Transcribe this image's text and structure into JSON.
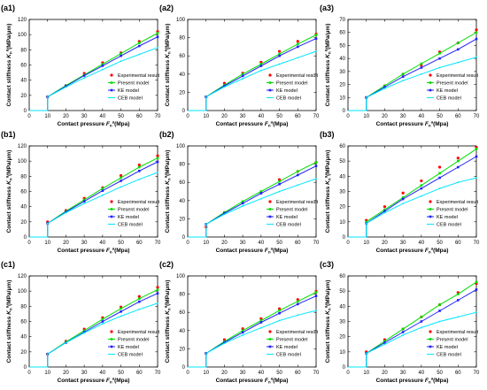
{
  "figure": {
    "xlabel_main": "Contact pressure ",
    "xlabel_var": "F",
    "xlabel_sub": "n",
    "xlabel_sup": "a",
    "xlabel_unit": "(Mpa)",
    "ylabel_main": "Contact stiffness ",
    "ylabel_var": "K",
    "ylabel_sub": "n",
    "ylabel_sup": "a",
    "ylabel_unit": "(MPa/μm)",
    "legend": [
      "Experimental result",
      "Present model",
      "KE model",
      "CEB model"
    ],
    "colors": {
      "experimental": "#ff0000",
      "present": "#00e000",
      "ke": "#2020ff",
      "ceb": "#00e5ff"
    }
  },
  "chart_data": [
    {
      "label": "(a1)",
      "type": "line",
      "x": [
        10,
        20,
        30,
        40,
        50,
        60,
        70
      ],
      "xlim": [
        0,
        70
      ],
      "ylim": [
        0,
        120
      ],
      "xticks": [
        0,
        10,
        20,
        30,
        40,
        50,
        60,
        70
      ],
      "yticks": [
        0,
        20,
        40,
        60,
        80,
        100,
        120
      ],
      "series": [
        {
          "name": "Experimental result",
          "kind": "points",
          "values": [
            18,
            33,
            49,
            63,
            76,
            91,
            104
          ]
        },
        {
          "name": "Present model",
          "kind": "line",
          "values": [
            18,
            33,
            47,
            61,
            75,
            89,
            102
          ]
        },
        {
          "name": "KE model",
          "kind": "line",
          "values": [
            18,
            32,
            46,
            59,
            72,
            85,
            97
          ]
        },
        {
          "name": "CEB model",
          "kind": "line",
          "values": [
            18,
            31,
            43,
            54,
            65,
            74,
            83
          ]
        }
      ],
      "legend_position": "bottom-right"
    },
    {
      "label": "(a2)",
      "type": "line",
      "x": [
        10,
        20,
        30,
        40,
        50,
        60,
        70
      ],
      "xlim": [
        0,
        70
      ],
      "ylim": [
        0,
        100
      ],
      "xticks": [
        0,
        10,
        20,
        30,
        40,
        50,
        60,
        70
      ],
      "yticks": [
        0,
        20,
        40,
        60,
        80,
        100
      ],
      "series": [
        {
          "name": "Experimental result",
          "kind": "points",
          "values": [
            15,
            30,
            41,
            53,
            65,
            76,
            84
          ]
        },
        {
          "name": "Present model",
          "kind": "line",
          "values": [
            15,
            28,
            40,
            51,
            62,
            73,
            83
          ]
        },
        {
          "name": "KE model",
          "kind": "line",
          "values": [
            15,
            27,
            38,
            49,
            60,
            70,
            79
          ]
        },
        {
          "name": "CEB model",
          "kind": "line",
          "values": [
            15,
            26,
            35,
            44,
            51,
            58,
            65
          ]
        }
      ],
      "legend_position": "bottom-right"
    },
    {
      "label": "(a3)",
      "type": "line",
      "x": [
        10,
        20,
        30,
        40,
        50,
        60,
        70
      ],
      "xlim": [
        0,
        70
      ],
      "ylim": [
        0,
        70
      ],
      "xticks": [
        0,
        10,
        20,
        30,
        40,
        50,
        60,
        70
      ],
      "yticks": [
        0,
        10,
        20,
        30,
        40,
        50,
        60,
        70
      ],
      "series": [
        {
          "name": "Experimental result",
          "kind": "points",
          "values": [
            10,
            19,
            28,
            35,
            45,
            52,
            62
          ]
        },
        {
          "name": "Present model",
          "kind": "line",
          "values": [
            10,
            19,
            28,
            36,
            44,
            52,
            60
          ]
        },
        {
          "name": "KE model",
          "kind": "line",
          "values": [
            10,
            18,
            26,
            33,
            40,
            47,
            55
          ]
        },
        {
          "name": "CEB model",
          "kind": "line",
          "values": [
            10,
            17,
            23,
            28,
            33,
            37,
            41
          ]
        }
      ],
      "legend_position": "bottom-right"
    },
    {
      "label": "(b1)",
      "type": "line",
      "x": [
        10,
        20,
        30,
        40,
        50,
        60,
        70
      ],
      "xlim": [
        0,
        70
      ],
      "ylim": [
        0,
        120
      ],
      "xticks": [
        0,
        10,
        20,
        30,
        40,
        50,
        60,
        70
      ],
      "yticks": [
        0,
        20,
        40,
        60,
        80,
        100,
        120
      ],
      "series": [
        {
          "name": "Experimental result",
          "kind": "points",
          "values": [
            20,
            35,
            51,
            65,
            81,
            95,
            107
          ]
        },
        {
          "name": "Present model",
          "kind": "line",
          "values": [
            18,
            34,
            49,
            64,
            78,
            92,
            104
          ]
        },
        {
          "name": "KE model",
          "kind": "line",
          "values": [
            18,
            33,
            47,
            61,
            74,
            87,
            99
          ]
        },
        {
          "name": "CEB model",
          "kind": "line",
          "values": [
            18,
            32,
            44,
            55,
            66,
            76,
            85
          ]
        }
      ],
      "legend_position": "bottom-right"
    },
    {
      "label": "(b2)",
      "type": "line",
      "x": [
        10,
        20,
        30,
        40,
        50,
        60,
        70
      ],
      "xlim": [
        0,
        70
      ],
      "ylim": [
        0,
        100
      ],
      "xticks": [
        0,
        10,
        20,
        30,
        40,
        50,
        60,
        70
      ],
      "yticks": [
        0,
        20,
        40,
        60,
        80,
        100
      ],
      "series": [
        {
          "name": "Experimental result",
          "kind": "points",
          "values": [
            11,
            27,
            38,
            49,
            63,
            72,
            82
          ]
        },
        {
          "name": "Present model",
          "kind": "line",
          "values": [
            14,
            27,
            39,
            50,
            61,
            72,
            82
          ]
        },
        {
          "name": "KE model",
          "kind": "line",
          "values": [
            14,
            26,
            37,
            48,
            58,
            68,
            78
          ]
        },
        {
          "name": "CEB model",
          "kind": "line",
          "values": [
            14,
            25,
            34,
            42,
            50,
            57,
            64
          ]
        }
      ],
      "legend_position": "bottom-right"
    },
    {
      "label": "(b3)",
      "type": "line",
      "x": [
        10,
        20,
        30,
        40,
        50,
        60,
        70
      ],
      "xlim": [
        0,
        70
      ],
      "ylim": [
        0,
        60
      ],
      "xticks": [
        0,
        10,
        20,
        30,
        40,
        50,
        60,
        70
      ],
      "yticks": [
        0,
        10,
        20,
        30,
        40,
        50,
        60
      ],
      "series": [
        {
          "name": "Experimental result",
          "kind": "points",
          "values": [
            11,
            20,
            29,
            37,
            46,
            52,
            59
          ]
        },
        {
          "name": "Present model",
          "kind": "line",
          "values": [
            10,
            18,
            26,
            34,
            42,
            50,
            58
          ]
        },
        {
          "name": "KE model",
          "kind": "line",
          "values": [
            9,
            17,
            25,
            32,
            39,
            46,
            53
          ]
        },
        {
          "name": "CEB model",
          "kind": "line",
          "values": [
            9,
            16,
            22,
            27,
            32,
            36,
            39
          ]
        }
      ],
      "legend_position": "bottom-right"
    },
    {
      "label": "(c1)",
      "type": "line",
      "x": [
        10,
        20,
        30,
        40,
        50,
        60,
        70
      ],
      "xlim": [
        0,
        70
      ],
      "ylim": [
        0,
        120
      ],
      "xticks": [
        0,
        10,
        20,
        30,
        40,
        50,
        60,
        70
      ],
      "yticks": [
        0,
        20,
        40,
        60,
        80,
        100,
        120
      ],
      "series": [
        {
          "name": "Experimental result",
          "kind": "points",
          "values": [
            17,
            34,
            50,
            65,
            79,
            93,
            105
          ]
        },
        {
          "name": "Present model",
          "kind": "line",
          "values": [
            17,
            33,
            48,
            63,
            77,
            90,
            102
          ]
        },
        {
          "name": "KE model",
          "kind": "line",
          "values": [
            17,
            32,
            46,
            60,
            73,
            86,
            97
          ]
        },
        {
          "name": "CEB model",
          "kind": "line",
          "values": [
            17,
            32,
            45,
            57,
            67,
            76,
            84
          ]
        }
      ],
      "legend_position": "bottom-right"
    },
    {
      "label": "(c2)",
      "type": "line",
      "x": [
        10,
        20,
        30,
        40,
        50,
        60,
        70
      ],
      "xlim": [
        0,
        70
      ],
      "ylim": [
        0,
        100
      ],
      "xticks": [
        0,
        10,
        20,
        30,
        40,
        50,
        60,
        70
      ],
      "yticks": [
        0,
        20,
        40,
        60,
        80,
        100
      ],
      "series": [
        {
          "name": "Experimental result",
          "kind": "points",
          "values": [
            15,
            30,
            42,
            53,
            64,
            74,
            83
          ]
        },
        {
          "name": "Present model",
          "kind": "line",
          "values": [
            15,
            28,
            40,
            51,
            62,
            72,
            82
          ]
        },
        {
          "name": "KE model",
          "kind": "line",
          "values": [
            15,
            27,
            38,
            49,
            59,
            69,
            78
          ]
        },
        {
          "name": "CEB model",
          "kind": "line",
          "values": [
            15,
            26,
            35,
            43,
            51,
            57,
            62
          ]
        }
      ],
      "legend_position": "bottom-right"
    },
    {
      "label": "(c3)",
      "type": "line",
      "x": [
        10,
        20,
        30,
        40,
        50,
        60,
        70
      ],
      "xlim": [
        0,
        70
      ],
      "ylim": [
        0,
        60
      ],
      "xticks": [
        0,
        10,
        20,
        30,
        40,
        50,
        60,
        70
      ],
      "yticks": [
        0,
        10,
        20,
        30,
        40,
        50,
        60
      ],
      "series": [
        {
          "name": "Experimental result",
          "kind": "points",
          "values": [
            10,
            18,
            25,
            33,
            41,
            49,
            55
          ]
        },
        {
          "name": "Present model",
          "kind": "line",
          "values": [
            9,
            17,
            25,
            33,
            41,
            48,
            56
          ]
        },
        {
          "name": "KE model",
          "kind": "line",
          "values": [
            9,
            16,
            23,
            30,
            37,
            44,
            51
          ]
        },
        {
          "name": "CEB model",
          "kind": "line",
          "values": [
            9,
            15,
            21,
            26,
            30,
            33,
            36
          ]
        }
      ],
      "legend_position": "bottom-right"
    }
  ]
}
